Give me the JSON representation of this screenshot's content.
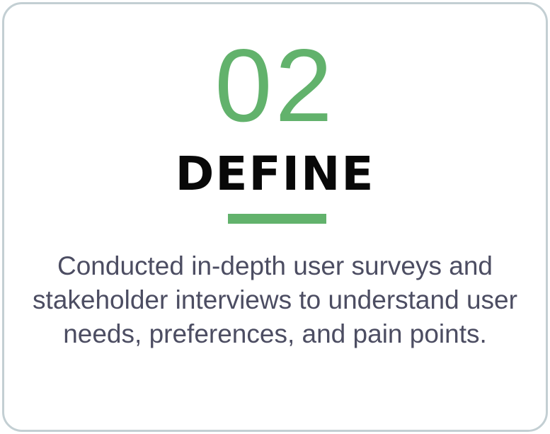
{
  "card": {
    "number": "02",
    "title": "DEFINE",
    "description": "Conducted in-depth user surveys and stakeholder interviews to understand user needs, preferences, and pain points."
  },
  "colors": {
    "accent": "#62b26c",
    "title": "#080808",
    "body_text": "#4c4d62",
    "border": "#c3cfd3"
  }
}
